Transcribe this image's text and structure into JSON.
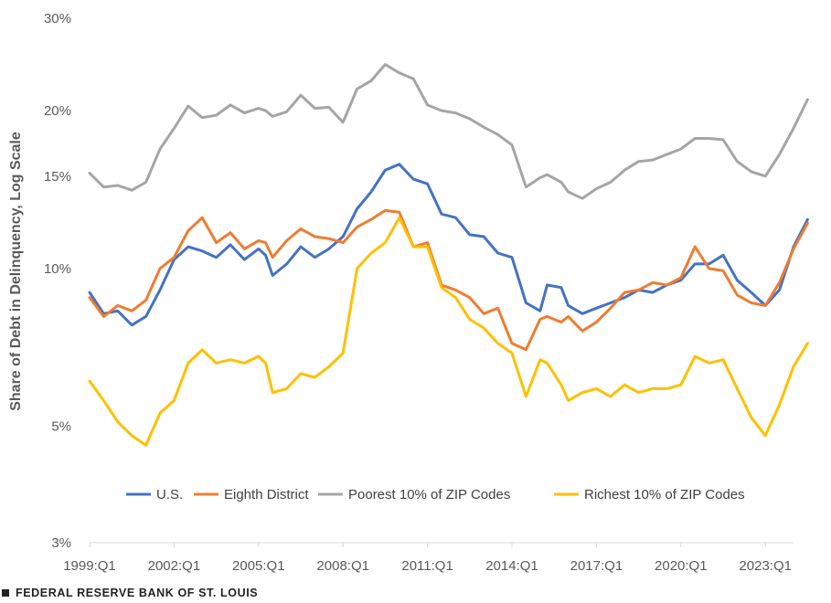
{
  "chart_data": {
    "type": "line",
    "title": "",
    "xlabel": "",
    "ylabel": "Share of Debt in Delinquency, Log Scale",
    "y_scale": "log",
    "ylim": [
      3,
      30
    ],
    "y_ticks": [
      3,
      5,
      10,
      15,
      20,
      30
    ],
    "y_tick_labels": [
      "3%",
      "5%",
      "10%",
      "15%",
      "20%",
      "30%"
    ],
    "x_start": "1999:Q1",
    "x_end": "2024:Q1",
    "x_ticks": [
      "1999:Q1",
      "2002:Q1",
      "2005:Q1",
      "2008:Q1",
      "2011:Q1",
      "2014:Q1",
      "2017:Q1",
      "2020:Q1",
      "2023:Q1"
    ],
    "grid": false,
    "legend_position": "bottom",
    "series": [
      {
        "name": "U.S.",
        "color": "#4472C4",
        "points": [
          [
            "1999:Q1",
            9.0
          ],
          [
            "1999:Q3",
            8.2
          ],
          [
            "2000:Q1",
            8.3
          ],
          [
            "2000:Q3",
            7.8
          ],
          [
            "2001:Q1",
            8.1
          ],
          [
            "2001:Q3",
            9.1
          ],
          [
            "2002:Q1",
            10.4
          ],
          [
            "2002:Q3",
            11.0
          ],
          [
            "2003:Q1",
            10.8
          ],
          [
            "2003:Q3",
            10.5
          ],
          [
            "2004:Q1",
            11.1
          ],
          [
            "2004:Q3",
            10.4
          ],
          [
            "2005:Q1",
            10.9
          ],
          [
            "2005:Q2",
            10.6
          ],
          [
            "2005:Q3",
            9.7
          ],
          [
            "2006:Q1",
            10.2
          ],
          [
            "2006:Q3",
            11.0
          ],
          [
            "2007:Q1",
            10.5
          ],
          [
            "2007:Q3",
            10.9
          ],
          [
            "2008:Q1",
            11.5
          ],
          [
            "2008:Q3",
            13.0
          ],
          [
            "2009:Q1",
            14.0
          ],
          [
            "2009:Q3",
            15.4
          ],
          [
            "2010:Q1",
            15.8
          ],
          [
            "2010:Q3",
            14.8
          ],
          [
            "2011:Q1",
            14.5
          ],
          [
            "2011:Q3",
            12.7
          ],
          [
            "2012:Q1",
            12.5
          ],
          [
            "2012:Q3",
            11.6
          ],
          [
            "2013:Q1",
            11.5
          ],
          [
            "2013:Q3",
            10.7
          ],
          [
            "2014:Q1",
            10.5
          ],
          [
            "2014:Q3",
            8.6
          ],
          [
            "2015:Q1",
            8.3
          ],
          [
            "2015:Q2",
            9.3
          ],
          [
            "2015:Q4",
            9.2
          ],
          [
            "2016:Q1",
            8.5
          ],
          [
            "2016:Q3",
            8.2
          ],
          [
            "2017:Q1",
            8.4
          ],
          [
            "2017:Q3",
            8.6
          ],
          [
            "2018:Q1",
            8.8
          ],
          [
            "2018:Q3",
            9.1
          ],
          [
            "2019:Q1",
            9.0
          ],
          [
            "2019:Q3",
            9.3
          ],
          [
            "2020:Q1",
            9.5
          ],
          [
            "2020:Q3",
            10.2
          ],
          [
            "2021:Q1",
            10.2
          ],
          [
            "2021:Q3",
            10.6
          ],
          [
            "2022:Q1",
            9.5
          ],
          [
            "2022:Q3",
            9.0
          ],
          [
            "2023:Q1",
            8.5
          ],
          [
            "2023:Q3",
            9.1
          ],
          [
            "2024:Q1",
            11.0
          ],
          [
            "2024:Q3",
            12.4
          ]
        ]
      },
      {
        "name": "Eighth District",
        "color": "#ED7D31",
        "points": [
          [
            "1999:Q1",
            8.8
          ],
          [
            "1999:Q3",
            8.1
          ],
          [
            "2000:Q1",
            8.5
          ],
          [
            "2000:Q3",
            8.3
          ],
          [
            "2001:Q1",
            8.7
          ],
          [
            "2001:Q3",
            10.0
          ],
          [
            "2002:Q1",
            10.5
          ],
          [
            "2002:Q3",
            11.8
          ],
          [
            "2003:Q1",
            12.5
          ],
          [
            "2003:Q3",
            11.2
          ],
          [
            "2004:Q1",
            11.7
          ],
          [
            "2004:Q3",
            10.9
          ],
          [
            "2005:Q1",
            11.3
          ],
          [
            "2005:Q2",
            11.2
          ],
          [
            "2005:Q3",
            10.5
          ],
          [
            "2006:Q1",
            11.3
          ],
          [
            "2006:Q3",
            11.9
          ],
          [
            "2007:Q1",
            11.5
          ],
          [
            "2007:Q3",
            11.4
          ],
          [
            "2008:Q1",
            11.2
          ],
          [
            "2008:Q3",
            12.0
          ],
          [
            "2009:Q1",
            12.4
          ],
          [
            "2009:Q3",
            12.9
          ],
          [
            "2010:Q1",
            12.8
          ],
          [
            "2010:Q3",
            11.0
          ],
          [
            "2011:Q1",
            11.2
          ],
          [
            "2011:Q3",
            9.3
          ],
          [
            "2012:Q1",
            9.1
          ],
          [
            "2012:Q3",
            8.8
          ],
          [
            "2013:Q1",
            8.2
          ],
          [
            "2013:Q3",
            8.4
          ],
          [
            "2014:Q1",
            7.2
          ],
          [
            "2014:Q3",
            7.0
          ],
          [
            "2015:Q1",
            8.0
          ],
          [
            "2015:Q2",
            8.1
          ],
          [
            "2015:Q4",
            7.9
          ],
          [
            "2016:Q1",
            8.1
          ],
          [
            "2016:Q3",
            7.6
          ],
          [
            "2017:Q1",
            7.9
          ],
          [
            "2017:Q3",
            8.4
          ],
          [
            "2018:Q1",
            9.0
          ],
          [
            "2018:Q3",
            9.1
          ],
          [
            "2019:Q1",
            9.4
          ],
          [
            "2019:Q3",
            9.3
          ],
          [
            "2020:Q1",
            9.6
          ],
          [
            "2020:Q3",
            11.0
          ],
          [
            "2021:Q1",
            10.0
          ],
          [
            "2021:Q3",
            9.9
          ],
          [
            "2022:Q1",
            8.9
          ],
          [
            "2022:Q3",
            8.6
          ],
          [
            "2023:Q1",
            8.5
          ],
          [
            "2023:Q3",
            9.4
          ],
          [
            "2024:Q1",
            10.9
          ],
          [
            "2024:Q3",
            12.2
          ]
        ]
      },
      {
        "name": "Poorest 10% of ZIP Codes",
        "color": "#A5A5A5",
        "points": [
          [
            "1999:Q1",
            15.2
          ],
          [
            "1999:Q3",
            14.3
          ],
          [
            "2000:Q1",
            14.4
          ],
          [
            "2000:Q3",
            14.1
          ],
          [
            "2001:Q1",
            14.6
          ],
          [
            "2001:Q3",
            16.9
          ],
          [
            "2002:Q1",
            18.5
          ],
          [
            "2002:Q3",
            20.4
          ],
          [
            "2003:Q1",
            19.4
          ],
          [
            "2003:Q3",
            19.6
          ],
          [
            "2004:Q1",
            20.5
          ],
          [
            "2004:Q3",
            19.8
          ],
          [
            "2005:Q1",
            20.2
          ],
          [
            "2005:Q2",
            20.0
          ],
          [
            "2005:Q3",
            19.5
          ],
          [
            "2006:Q1",
            19.9
          ],
          [
            "2006:Q3",
            21.4
          ],
          [
            "2007:Q1",
            20.2
          ],
          [
            "2007:Q3",
            20.3
          ],
          [
            "2008:Q1",
            19.0
          ],
          [
            "2008:Q3",
            22.0
          ],
          [
            "2009:Q1",
            22.8
          ],
          [
            "2009:Q3",
            24.5
          ],
          [
            "2010:Q1",
            23.6
          ],
          [
            "2010:Q3",
            23.0
          ],
          [
            "2011:Q1",
            20.5
          ],
          [
            "2011:Q3",
            20.0
          ],
          [
            "2012:Q1",
            19.8
          ],
          [
            "2012:Q3",
            19.3
          ],
          [
            "2013:Q1",
            18.6
          ],
          [
            "2013:Q3",
            18.0
          ],
          [
            "2014:Q1",
            17.2
          ],
          [
            "2014:Q3",
            14.3
          ],
          [
            "2015:Q1",
            14.9
          ],
          [
            "2015:Q2",
            15.1
          ],
          [
            "2015:Q4",
            14.6
          ],
          [
            "2016:Q1",
            14.0
          ],
          [
            "2016:Q3",
            13.6
          ],
          [
            "2017:Q1",
            14.2
          ],
          [
            "2017:Q3",
            14.6
          ],
          [
            "2018:Q1",
            15.4
          ],
          [
            "2018:Q3",
            16.0
          ],
          [
            "2019:Q1",
            16.1
          ],
          [
            "2019:Q3",
            16.5
          ],
          [
            "2020:Q1",
            16.9
          ],
          [
            "2020:Q3",
            17.7
          ],
          [
            "2021:Q1",
            17.7
          ],
          [
            "2021:Q3",
            17.6
          ],
          [
            "2022:Q1",
            16.0
          ],
          [
            "2022:Q3",
            15.3
          ],
          [
            "2023:Q1",
            15.0
          ],
          [
            "2023:Q3",
            16.5
          ],
          [
            "2024:Q1",
            18.5
          ],
          [
            "2024:Q3",
            21.0
          ]
        ]
      },
      {
        "name": "Richest 10% of ZIP Codes",
        "color": "#FFC000",
        "points": [
          [
            "1999:Q1",
            6.1
          ],
          [
            "1999:Q3",
            5.6
          ],
          [
            "2000:Q1",
            5.1
          ],
          [
            "2000:Q3",
            4.8
          ],
          [
            "2001:Q1",
            4.6
          ],
          [
            "2001:Q3",
            5.3
          ],
          [
            "2002:Q1",
            5.6
          ],
          [
            "2002:Q3",
            6.6
          ],
          [
            "2003:Q1",
            7.0
          ],
          [
            "2003:Q3",
            6.6
          ],
          [
            "2004:Q1",
            6.7
          ],
          [
            "2004:Q3",
            6.6
          ],
          [
            "2005:Q1",
            6.8
          ],
          [
            "2005:Q2",
            6.6
          ],
          [
            "2005:Q3",
            5.8
          ],
          [
            "2006:Q1",
            5.9
          ],
          [
            "2006:Q3",
            6.3
          ],
          [
            "2007:Q1",
            6.2
          ],
          [
            "2007:Q3",
            6.5
          ],
          [
            "2008:Q1",
            6.9
          ],
          [
            "2008:Q3",
            10.0
          ],
          [
            "2009:Q1",
            10.7
          ],
          [
            "2009:Q3",
            11.2
          ],
          [
            "2010:Q1",
            12.5
          ],
          [
            "2010:Q3",
            11.0
          ],
          [
            "2011:Q1",
            11.0
          ],
          [
            "2011:Q3",
            9.2
          ],
          [
            "2012:Q1",
            8.8
          ],
          [
            "2012:Q3",
            8.0
          ],
          [
            "2013:Q1",
            7.7
          ],
          [
            "2013:Q3",
            7.2
          ],
          [
            "2014:Q1",
            6.9
          ],
          [
            "2014:Q3",
            5.7
          ],
          [
            "2015:Q1",
            6.7
          ],
          [
            "2015:Q2",
            6.6
          ],
          [
            "2015:Q4",
            6.0
          ],
          [
            "2016:Q1",
            5.6
          ],
          [
            "2016:Q3",
            5.8
          ],
          [
            "2017:Q1",
            5.9
          ],
          [
            "2017:Q3",
            5.7
          ],
          [
            "2018:Q1",
            6.0
          ],
          [
            "2018:Q3",
            5.8
          ],
          [
            "2019:Q1",
            5.9
          ],
          [
            "2019:Q3",
            5.9
          ],
          [
            "2020:Q1",
            6.0
          ],
          [
            "2020:Q3",
            6.8
          ],
          [
            "2021:Q1",
            6.6
          ],
          [
            "2021:Q3",
            6.7
          ],
          [
            "2022:Q1",
            5.9
          ],
          [
            "2022:Q3",
            5.2
          ],
          [
            "2023:Q1",
            4.8
          ],
          [
            "2023:Q3",
            5.5
          ],
          [
            "2024:Q1",
            6.5
          ],
          [
            "2024:Q3",
            7.2
          ]
        ]
      }
    ]
  },
  "footer": {
    "source": "FEDERAL RESERVE BANK OF ST. LOUIS"
  }
}
